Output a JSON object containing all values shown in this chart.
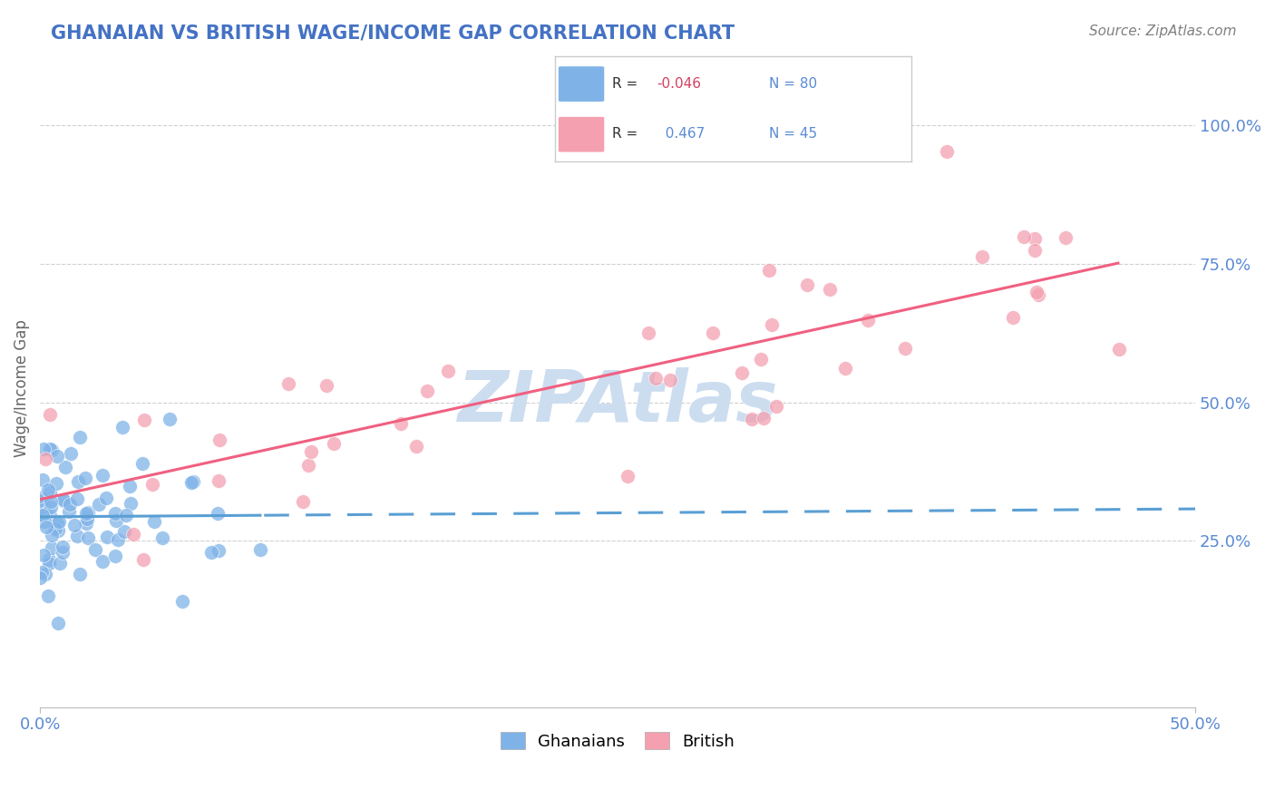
{
  "title": "GHANAIAN VS BRITISH WAGE/INCOME GAP CORRELATION CHART",
  "source": "Source: ZipAtlas.com",
  "ylabel": "Wage/Income Gap",
  "r_ghanaian": -0.046,
  "n_ghanaian": 80,
  "r_british": 0.467,
  "n_british": 45,
  "title_color": "#4472c4",
  "source_color": "#808080",
  "watermark_text": "ZIPAtlas",
  "watermark_color": "#ccddf0",
  "ghanaian_scatter_color": "#7fb3e8",
  "british_scatter_color": "#f4a0b0",
  "ghanaian_line_color": "#5a9fd4",
  "british_line_color": "#f06080",
  "background_color": "#ffffff",
  "grid_color": "#d0d0d0",
  "tick_color": "#5a8ad4",
  "ytick_values": [
    0.25,
    0.5,
    0.75,
    1.0
  ],
  "ytick_labels": [
    "25.0%",
    "50.0%",
    "75.0%",
    "100.0%"
  ],
  "xlim": [
    0.0,
    0.5
  ],
  "ylim": [
    -0.05,
    1.1
  ]
}
